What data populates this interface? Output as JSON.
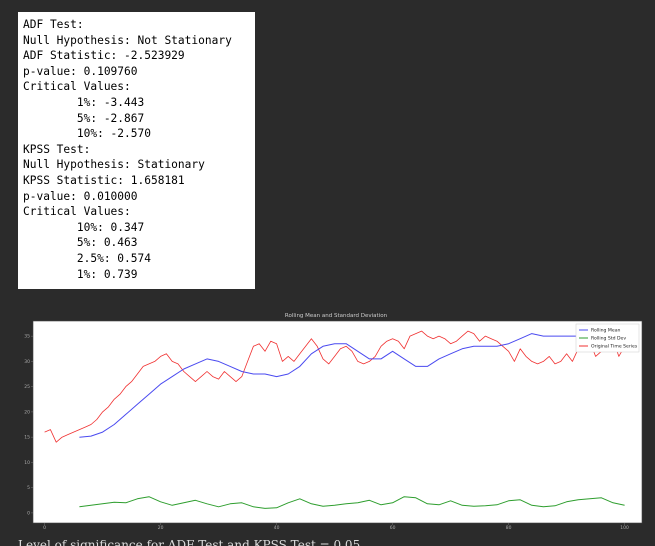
{
  "output": {
    "lines": [
      "ADF Test:",
      "Null Hypothesis: Not Stationary",
      "ADF Statistic: -2.523929",
      "p-value: 0.109760",
      "Critical Values:",
      "\t1%: -3.443",
      "\t5%: -2.867",
      "\t10%: -2.570",
      "KPSS Test:",
      "Null Hypothesis: Stationary",
      "KPSS Statistic: 1.658181",
      "p-value: 0.010000",
      "Critical Values:",
      "\t10%: 0.347",
      "\t5%: 0.463",
      "\t2.5%: 0.574",
      "\t1%: 0.739"
    ]
  },
  "chart_data": {
    "type": "line",
    "title": "Rolling Mean and Standard Deviation",
    "xlabel": "",
    "ylabel": "",
    "xlim": [
      -2,
      103
    ],
    "ylim": [
      -2,
      38
    ],
    "x_ticks": [
      "0",
      "20",
      "40",
      "60",
      "80",
      "100"
    ],
    "y_ticks": [
      "0",
      "5",
      "10",
      "15",
      "20",
      "25",
      "30",
      "35"
    ],
    "legend_position": "top-right",
    "series": [
      {
        "name": "Rolling Mean",
        "color": "#4a4af0",
        "x": [
          6,
          8,
          10,
          12,
          14,
          16,
          18,
          20,
          22,
          24,
          26,
          28,
          30,
          32,
          34,
          36,
          38,
          40,
          42,
          44,
          46,
          48,
          50,
          52,
          54,
          56,
          58,
          60,
          62,
          64,
          66,
          68,
          70,
          72,
          74,
          76,
          78,
          80,
          82,
          84,
          86,
          88,
          90,
          92,
          94,
          96,
          98,
          100
        ],
        "values": [
          15,
          15.2,
          16,
          17.5,
          19.5,
          21.5,
          23.5,
          25.5,
          27,
          28.5,
          29.5,
          30.5,
          30,
          29,
          28,
          27.5,
          27.5,
          27,
          27.5,
          29,
          31.5,
          33,
          33.5,
          33.5,
          32,
          30.5,
          30.5,
          32,
          30.5,
          29,
          29,
          30.5,
          31.5,
          32.5,
          33,
          33,
          33,
          33.5,
          34.5,
          35.5,
          35,
          35,
          35,
          35,
          34.5,
          33,
          32,
          32.5
        ]
      },
      {
        "name": "Rolling Std Dev",
        "color": "#2e9e2e",
        "x": [
          6,
          8,
          10,
          12,
          14,
          16,
          18,
          20,
          22,
          24,
          26,
          28,
          30,
          32,
          34,
          36,
          38,
          40,
          42,
          44,
          46,
          48,
          50,
          52,
          54,
          56,
          58,
          60,
          62,
          64,
          66,
          68,
          70,
          72,
          74,
          76,
          78,
          80,
          82,
          84,
          86,
          88,
          90,
          92,
          94,
          96,
          98,
          100
        ],
        "values": [
          1.2,
          1.5,
          1.8,
          2.1,
          2,
          2.8,
          3.2,
          2.2,
          1.5,
          2,
          2.5,
          1.8,
          1.2,
          1.8,
          2,
          1.2,
          0.9,
          1,
          2,
          2.8,
          1.8,
          1.3,
          1.5,
          1.8,
          2,
          2.5,
          1.6,
          2,
          3.2,
          3,
          1.8,
          1.6,
          2.4,
          1.5,
          1.3,
          1.4,
          1.6,
          2.4,
          2.6,
          1.5,
          1.2,
          1.4,
          2.2,
          2.6,
          2.8,
          3,
          2,
          1.5
        ]
      },
      {
        "name": "Original Time Series",
        "color": "#f03030",
        "x": [
          0,
          1,
          2,
          3,
          4,
          5,
          6,
          7,
          8,
          9,
          10,
          11,
          12,
          13,
          14,
          15,
          16,
          17,
          18,
          19,
          20,
          21,
          22,
          23,
          24,
          25,
          26,
          27,
          28,
          29,
          30,
          31,
          32,
          33,
          34,
          35,
          36,
          37,
          38,
          39,
          40,
          41,
          42,
          43,
          44,
          45,
          46,
          47,
          48,
          49,
          50,
          51,
          52,
          53,
          54,
          55,
          56,
          57,
          58,
          59,
          60,
          61,
          62,
          63,
          64,
          65,
          66,
          67,
          68,
          69,
          70,
          71,
          72,
          73,
          74,
          75,
          76,
          77,
          78,
          79,
          80,
          81,
          82,
          83,
          84,
          85,
          86,
          87,
          88,
          89,
          90,
          91,
          92,
          93,
          94,
          95,
          96,
          97,
          98,
          99,
          100
        ],
        "values": [
          16,
          16.5,
          14,
          15,
          15.5,
          16,
          16.5,
          17,
          17.5,
          18.5,
          20,
          21,
          22.5,
          23.5,
          25,
          26,
          27.5,
          29,
          29.5,
          30,
          31,
          31.5,
          30,
          29.5,
          28,
          27,
          26,
          27,
          28,
          27,
          26.5,
          28,
          27,
          26,
          27,
          30,
          33,
          33.5,
          32,
          34,
          33.5,
          30,
          31,
          30,
          31.5,
          33,
          34.5,
          33,
          30.5,
          29.5,
          31,
          32.5,
          33,
          32,
          30,
          29.5,
          30,
          31,
          33,
          34,
          34.5,
          34,
          32.5,
          35,
          35.5,
          36,
          35,
          34.5,
          35,
          34.5,
          33.5,
          34,
          35,
          36,
          35.5,
          34,
          35,
          34.5,
          34,
          33,
          32,
          30,
          32.5,
          31,
          30,
          29.5,
          30,
          31,
          29.5,
          30,
          31.5,
          30,
          32.5,
          33,
          34,
          31,
          32,
          33,
          34.5,
          31,
          33
        ]
      }
    ]
  },
  "footer": {
    "text": "Level of significance for ADF Test and KPSS Test = 0.05"
  }
}
